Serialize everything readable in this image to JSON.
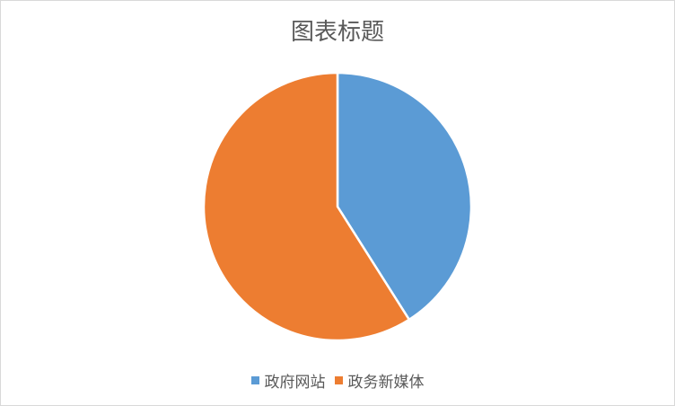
{
  "chart_data": {
    "type": "pie",
    "title": "图表标题",
    "categories": [
      "政府网站",
      "政务新媒体"
    ],
    "values": [
      41,
      59
    ],
    "colors": [
      "#5B9BD5",
      "#ED7D31"
    ],
    "legend_position": "bottom"
  }
}
